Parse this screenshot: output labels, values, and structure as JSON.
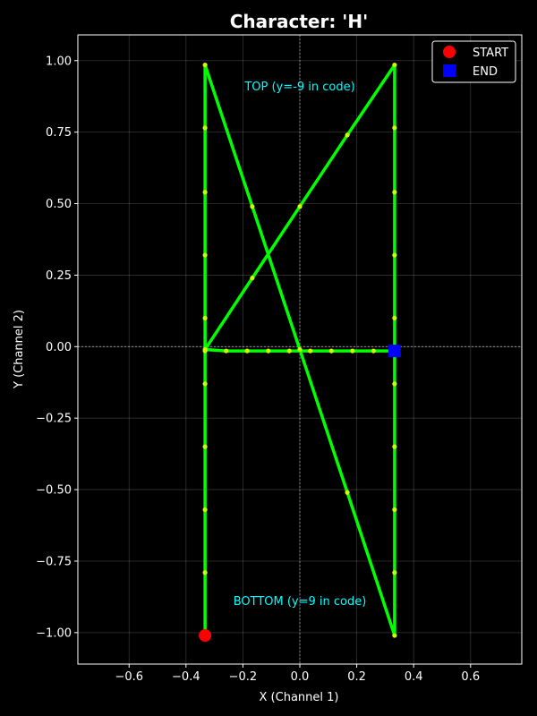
{
  "chart_data": {
    "type": "line",
    "title": "Character: 'H'",
    "xlabel": "X (Channel 1)",
    "ylabel": "Y (Channel 2)",
    "xlim": [
      -0.78,
      0.78
    ],
    "ylim": [
      -1.11,
      1.09
    ],
    "xticks": [
      -0.6,
      -0.4,
      -0.2,
      0.0,
      0.2,
      0.4,
      0.6
    ],
    "xtick_labels": [
      "−0.6",
      "−0.4",
      "−0.2",
      "0.0",
      "0.2",
      "0.4",
      "0.6"
    ],
    "yticks": [
      -1.0,
      -0.75,
      -0.5,
      -0.25,
      0.0,
      0.25,
      0.5,
      0.75,
      1.0
    ],
    "ytick_labels": [
      "−1.00",
      "−0.75",
      "−0.50",
      "−0.25",
      "0.00",
      "0.25",
      "0.50",
      "0.75",
      "1.00"
    ],
    "grid": true,
    "legend_position": "top-right",
    "colors": {
      "background": "#000000",
      "path": "#00ff00",
      "point": "#ccff00",
      "start": "#ff0000",
      "end": "#0000ff",
      "annotation": "#00ffff",
      "text": "#ffffff"
    },
    "path": [
      [
        -0.333,
        -1.01
      ],
      [
        -0.333,
        -0.79
      ],
      [
        -0.333,
        -0.57
      ],
      [
        -0.333,
        -0.35
      ],
      [
        -0.333,
        -0.13
      ],
      [
        -0.333,
        -0.015
      ],
      [
        -0.333,
        0.1
      ],
      [
        -0.333,
        0.32
      ],
      [
        -0.333,
        0.54
      ],
      [
        -0.333,
        0.765
      ],
      [
        -0.333,
        0.985
      ],
      [
        -0.167,
        0.49
      ],
      [
        0.0,
        -0.01
      ],
      [
        0.167,
        -0.51
      ],
      [
        0.333,
        -1.01
      ],
      [
        0.333,
        -0.79
      ],
      [
        0.333,
        -0.57
      ],
      [
        0.333,
        -0.35
      ],
      [
        0.333,
        -0.13
      ],
      [
        0.333,
        -0.015
      ],
      [
        0.333,
        0.1
      ],
      [
        0.333,
        0.32
      ],
      [
        0.333,
        0.54
      ],
      [
        0.333,
        0.765
      ],
      [
        0.333,
        0.985
      ],
      [
        0.167,
        0.74
      ],
      [
        0.0,
        0.49
      ],
      [
        -0.167,
        0.24
      ],
      [
        -0.333,
        -0.01
      ],
      [
        -0.259,
        -0.015
      ],
      [
        -0.185,
        -0.015
      ],
      [
        -0.111,
        -0.015
      ],
      [
        -0.037,
        -0.015
      ],
      [
        0.037,
        -0.015
      ],
      [
        0.111,
        -0.015
      ],
      [
        0.185,
        -0.015
      ],
      [
        0.259,
        -0.015
      ],
      [
        0.333,
        -0.015
      ]
    ],
    "start": [
      -0.333,
      -1.01
    ],
    "end": [
      0.333,
      -0.015
    ],
    "legend": [
      {
        "label": "START",
        "marker": "circle"
      },
      {
        "label": "END",
        "marker": "square"
      }
    ],
    "annotations": [
      {
        "text": "TOP (y=-9 in code)",
        "x": 0.0,
        "y": 0.91
      },
      {
        "text": "BOTTOM (y=9 in code)",
        "x": 0.0,
        "y": -0.89
      }
    ]
  }
}
